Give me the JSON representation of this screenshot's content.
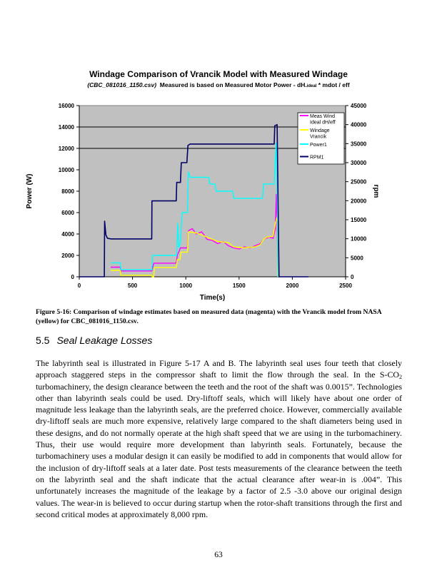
{
  "chart_data": {
    "type": "line",
    "title": "Windage Comparison of Vrancik Model with Measured Windage",
    "subtitle": {
      "file": "(CBC_081016_1150.csv)",
      "text": "Measured is based on Measured Motor Power - dH.",
      "sub": "ideal",
      "tail": " * mdot / eff"
    },
    "xlabel": "Time(s)",
    "ylabel": "Power (W)",
    "y2label": "rpm",
    "xlim": [
      0,
      2500
    ],
    "ylim": [
      0,
      16000
    ],
    "y2lim": [
      0,
      45000
    ],
    "xticks": [
      "0",
      "500",
      "1000",
      "1500",
      "2000",
      "2500"
    ],
    "yticks": [
      "0",
      "2000",
      "4000",
      "6000",
      "8000",
      "10000",
      "12000",
      "14000",
      "16000"
    ],
    "y2ticks": [
      "0",
      "5000",
      "10000",
      "15000",
      "20000",
      "25000",
      "30000",
      "35000",
      "40000",
      "45000"
    ],
    "gridlines_y": [
      12000,
      14000
    ],
    "plot_background": "#c0c0c0",
    "legend_position": "top-right",
    "series": [
      {
        "name": "Meas Wind Ideal dH/eff",
        "legend_lines": [
          "Meas Wind",
          "Ideal dH/eff"
        ],
        "axis": "left",
        "color": "#ff00ff",
        "points": [
          [
            295,
            900
          ],
          [
            385,
            900
          ],
          [
            390,
            550
          ],
          [
            680,
            550
          ],
          [
            700,
            1270
          ],
          [
            910,
            1270
          ],
          [
            920,
            2000
          ],
          [
            950,
            2700
          ],
          [
            1015,
            2700
          ],
          [
            1025,
            4300
          ],
          [
            1060,
            4500
          ],
          [
            1100,
            4000
          ],
          [
            1150,
            4200
          ],
          [
            1200,
            3500
          ],
          [
            1250,
            3400
          ],
          [
            1300,
            3100
          ],
          [
            1350,
            3300
          ],
          [
            1400,
            2900
          ],
          [
            1450,
            2700
          ],
          [
            1500,
            2600
          ],
          [
            1550,
            2800
          ],
          [
            1600,
            2700
          ],
          [
            1650,
            2900
          ],
          [
            1700,
            3100
          ],
          [
            1730,
            3500
          ],
          [
            1780,
            3700
          ],
          [
            1820,
            3600
          ],
          [
            1840,
            4500
          ],
          [
            1850,
            7700
          ],
          [
            1858,
            5000
          ],
          [
            1865,
            0
          ]
        ]
      },
      {
        "name": "Windage Vrancik",
        "legend_lines": [
          "Windage",
          "Vrancik"
        ],
        "axis": "left",
        "color": "#ffff00",
        "points": [
          [
            295,
            600
          ],
          [
            385,
            600
          ],
          [
            390,
            150
          ],
          [
            680,
            150
          ],
          [
            685,
            0
          ],
          [
            700,
            0
          ],
          [
            705,
            870
          ],
          [
            910,
            870
          ],
          [
            920,
            1600
          ],
          [
            945,
            1600
          ],
          [
            955,
            2300
          ],
          [
            1015,
            2300
          ],
          [
            1025,
            4200
          ],
          [
            1100,
            4100
          ],
          [
            1200,
            3700
          ],
          [
            1300,
            3300
          ],
          [
            1400,
            3200
          ],
          [
            1450,
            2800
          ],
          [
            1550,
            2700
          ],
          [
            1650,
            2800
          ],
          [
            1700,
            3000
          ],
          [
            1730,
            3500
          ],
          [
            1760,
            3700
          ],
          [
            1820,
            3800
          ],
          [
            1840,
            5000
          ],
          [
            1860,
            5600
          ],
          [
            1865,
            0
          ]
        ]
      },
      {
        "name": "Power1",
        "legend_lines": [
          "Power1"
        ],
        "axis": "left",
        "color": "#00ffff",
        "points": [
          [
            295,
            1300
          ],
          [
            385,
            1300
          ],
          [
            390,
            660
          ],
          [
            680,
            660
          ],
          [
            690,
            2000
          ],
          [
            915,
            2000
          ],
          [
            925,
            5000
          ],
          [
            935,
            2700
          ],
          [
            950,
            3300
          ],
          [
            965,
            6000
          ],
          [
            1015,
            6000
          ],
          [
            1025,
            9800
          ],
          [
            1040,
            9300
          ],
          [
            1215,
            9300
          ],
          [
            1225,
            8670
          ],
          [
            1275,
            8670
          ],
          [
            1285,
            8000
          ],
          [
            1440,
            8000
          ],
          [
            1450,
            7330
          ],
          [
            1720,
            7330
          ],
          [
            1730,
            8670
          ],
          [
            1830,
            8670
          ],
          [
            1848,
            12500
          ],
          [
            1858,
            8000
          ],
          [
            1868,
            0
          ]
        ]
      },
      {
        "name": "RPM1",
        "legend_lines": [
          "RPM1"
        ],
        "axis": "right",
        "color": "#000066",
        "points": [
          [
            0,
            0
          ],
          [
            235,
            0
          ],
          [
            238,
            14600
          ],
          [
            250,
            11000
          ],
          [
            265,
            10100
          ],
          [
            300,
            9950
          ],
          [
            680,
            9950
          ],
          [
            682,
            19950
          ],
          [
            910,
            19950
          ],
          [
            915,
            24800
          ],
          [
            950,
            24800
          ],
          [
            958,
            30000
          ],
          [
            1010,
            30000
          ],
          [
            1020,
            34500
          ],
          [
            1040,
            34900
          ],
          [
            1830,
            34900
          ],
          [
            1835,
            39700
          ],
          [
            1857,
            40000
          ],
          [
            1875,
            0
          ],
          [
            2150,
            0
          ]
        ]
      }
    ]
  },
  "caption": "Figure 5-16:  Comparison of windage estimates based on measured data (magenta) with the Vrancik model from NASA (yellow) for CBC_081016_1150.csv.",
  "section": {
    "number": "5.5",
    "title": "Seal Leakage Losses"
  },
  "body": {
    "part1": "The labyrinth seal is illustrated in Figure 5-17 A and B.  The labyrinth seal uses four teeth that closely approach staggered steps in the compressor shaft to limit the flow through the seal.  In the S-CO",
    "sub": "2",
    "part2": " turbomachinery, the design clearance between the teeth and the root of the shaft was 0.0015”.  Technologies other than labyrinth seals could be used.  Dry-liftoff seals, which will likely have about one order of magnitude less leakage than the labyrinth seals, are the preferred choice.  However, commercially available dry-liftoff seals are much more expensive, relatively large compared to the shaft diameters being used in these designs, and do not normally operate at the high shaft speed that we are using in the turbomachinery.  Thus, their use would require more development than labyrinth seals.  Fortunately, because the turbomachinery uses a modular design it can easily be modified to add in components that would allow for the inclusion of dry-liftoff seals at a later date. Post tests measurements of the clearance between the teeth on the labyrinth seal and the shaft indicate that the actual clearance after wear-in is .004”.  This unfortunately increases the magnitude of the leakage by a factor of 2.5 -3.0 above our original design values.  The wear-in is believed to occur during startup when the rotor-shaft transitions through the first and second critical modes at approximately 8,000 rpm."
  },
  "page_number": "63"
}
